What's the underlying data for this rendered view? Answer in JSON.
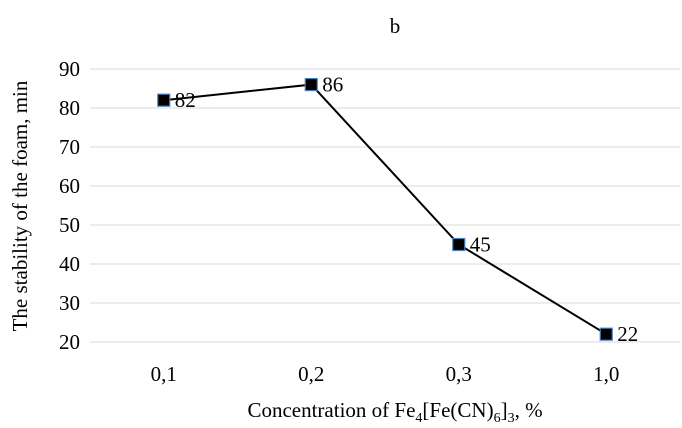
{
  "chart_data": {
    "type": "line",
    "title": "b",
    "xlabel": {
      "prefix": "Concentration of Fe",
      "sub1": "4",
      "mid1": "[Fe(CN)",
      "sub2": "6",
      "mid2": "]",
      "sub3": "3",
      "suffix": ", %"
    },
    "ylabel": "The stability of the foam, min",
    "categories": [
      "0,1",
      "0,2",
      "0,3",
      "1,0"
    ],
    "series": [
      {
        "values": [
          82,
          86,
          45,
          22
        ],
        "data_labels": [
          "82",
          "86",
          "45",
          "22"
        ]
      }
    ],
    "ylim": [
      20,
      90
    ],
    "yticks": [
      20,
      30,
      40,
      50,
      60,
      70,
      80,
      90
    ],
    "grid": true,
    "legend": "none",
    "colors": {
      "line": "#000000",
      "marker_fill": "#000000",
      "marker_edge": "#4a7fc1",
      "grid": "#d9d9d9"
    }
  }
}
